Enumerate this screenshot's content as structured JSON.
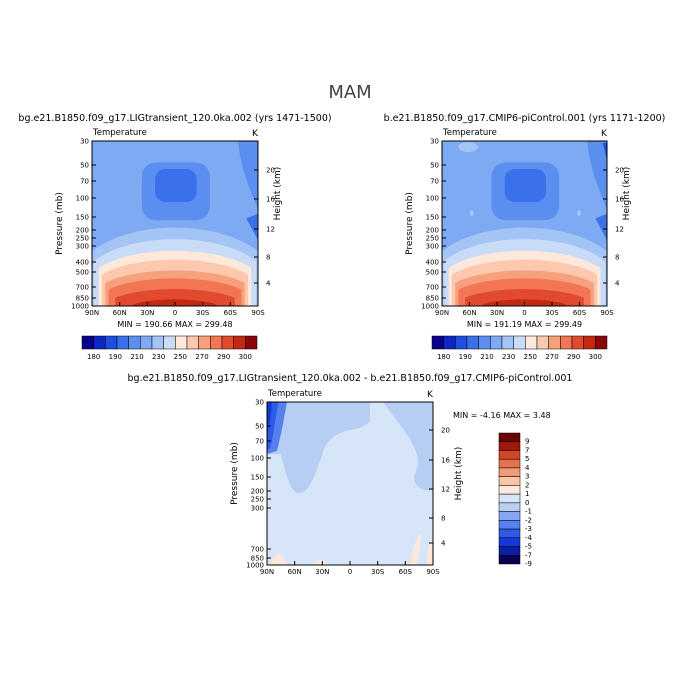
{
  "figure": {
    "season": "MAM"
  },
  "colors": {
    "abs_scale": [
      "#08008a",
      "#0c26c8",
      "#1d4ee0",
      "#3a70ea",
      "#5a8ff0",
      "#7eaaf4",
      "#a4c4f6",
      "#c8dcf8",
      "#fde8dc",
      "#fcc8ae",
      "#f7a07c",
      "#f27656",
      "#e24a30",
      "#c22812",
      "#8a0808"
    ],
    "diff_scale": [
      "#080050",
      "#0c1ea8",
      "#1538d8",
      "#2e5ae8",
      "#5580ee",
      "#86a6f2",
      "#b6cef4",
      "#d6e6f8",
      "#fde8dc",
      "#f9c4a8",
      "#f19a78",
      "#e6714e",
      "#d04626",
      "#a01808",
      "#6a0404"
    ]
  },
  "chart_data": [
    {
      "type": "heatmap",
      "panel": "top-left",
      "title": "bg.e21.B1850.f09_g17.LIGtransient_120.0ka.002 (yrs 1471-1500)",
      "subtitle_left": "Temperature",
      "subtitle_right": "K",
      "xlabel": "",
      "ylabel": "Pressure (mb)",
      "ylabel_right": "Height (km)",
      "x_ticks": [
        "90N",
        "60N",
        "30N",
        "0",
        "30S",
        "60S",
        "90S"
      ],
      "y_ticks": [
        "30",
        "50",
        "70",
        "100",
        "150",
        "200",
        "250",
        "300",
        "400",
        "500",
        "700",
        "850",
        "1000"
      ],
      "height_ticks": [
        "20",
        "16",
        "12",
        "8",
        "4"
      ],
      "stats": "MIN = 190.66   MAX = 299.48",
      "min": 190.66,
      "max": 299.48,
      "colorbar_labels": [
        "180",
        "190",
        "210",
        "230",
        "250",
        "270",
        "290",
        "300"
      ]
    },
    {
      "type": "heatmap",
      "panel": "top-right",
      "title": "b.e21.B1850.f09_g17.CMIP6-piControl.001 (yrs 1171-1200)",
      "subtitle_left": "Temperature",
      "subtitle_right": "K",
      "xlabel": "",
      "ylabel": "Pressure (mb)",
      "ylabel_right": "Height (km)",
      "x_ticks": [
        "90N",
        "60N",
        "30N",
        "0",
        "30S",
        "60S",
        "90S"
      ],
      "y_ticks": [
        "30",
        "50",
        "70",
        "100",
        "150",
        "200",
        "250",
        "300",
        "400",
        "500",
        "700",
        "850",
        "1000"
      ],
      "height_ticks": [
        "20",
        "16",
        "12",
        "8",
        "4"
      ],
      "stats": "MIN = 191.19   MAX = 299.49",
      "min": 191.19,
      "max": 299.49,
      "colorbar_labels": [
        "180",
        "190",
        "210",
        "230",
        "250",
        "270",
        "290",
        "300"
      ]
    },
    {
      "type": "heatmap",
      "panel": "bottom",
      "title": "bg.e21.B1850.f09_g17.LIGtransient_120.0ka.002 - b.e21.B1850.f09_g17.CMIP6-piControl.001",
      "subtitle_left": "Temperature",
      "subtitle_right": "K",
      "xlabel": "",
      "ylabel": "Pressure (mb)",
      "ylabel_right": "Height (km)",
      "x_ticks": [
        "90N",
        "60N",
        "30N",
        "0",
        "30S",
        "60S",
        "90S"
      ],
      "y_ticks": [
        "30",
        "50",
        "70",
        "100",
        "150",
        "200",
        "250",
        "300",
        "700",
        "850",
        "1000"
      ],
      "height_ticks": [
        "20",
        "16",
        "12",
        "8",
        "4"
      ],
      "stats": "MIN =  -4.16   MAX =   3.48",
      "min": -4.16,
      "max": 3.48,
      "colorbar_labels": [
        "9",
        "7",
        "5",
        "4",
        "3",
        "2",
        "1",
        "0",
        "-1",
        "-2",
        "-3",
        "-4",
        "-5",
        "-7",
        "-9"
      ]
    }
  ]
}
